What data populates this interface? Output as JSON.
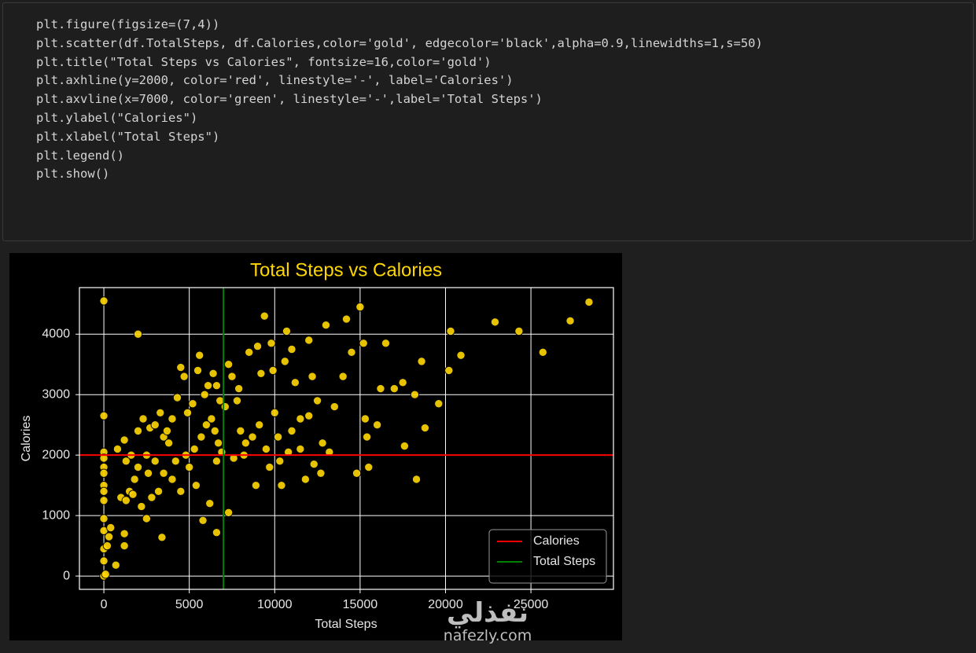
{
  "code": {
    "lines": [
      "plt.figure(figsize=(7,4))",
      "plt.scatter(df.TotalSteps, df.Calories,color='gold', edgecolor='black',alpha=0.9,linewidths=1,s=50)",
      "plt.title(\"Total Steps vs Calories\", fontsize=16,color='gold')",
      "plt.axhline(y=2000, color='red', linestyle='-', label='Calories')",
      "plt.axvline(x=7000, color='green', linestyle='-',label='Total Steps')",
      "plt.ylabel(\"Calories\")",
      "plt.xlabel(\"Total Steps\")",
      "plt.legend()",
      "plt.show()"
    ]
  },
  "chart_data": {
    "type": "scatter",
    "title": "Total Steps vs Calories",
    "title_color": "gold",
    "x_label": "Total Steps",
    "y_label": "Calories",
    "xlim": [
      -1430,
      29830
    ],
    "ylim": [
      -220,
      4770
    ],
    "xticks": [
      0,
      5000,
      10000,
      15000,
      20000,
      25000
    ],
    "yticks": [
      0,
      1000,
      2000,
      3000,
      4000
    ],
    "grid": true,
    "legend": "lower right",
    "series": [
      {
        "color": "gold",
        "edgecolor": "black",
        "alpha": 0.9,
        "x": [
          0,
          2000,
          0,
          0,
          0,
          0,
          0,
          0,
          0,
          0,
          0,
          0,
          0,
          0,
          0,
          100,
          200,
          300,
          400,
          700,
          1200,
          1200,
          1000,
          1300,
          1500,
          1800,
          2000,
          2200,
          2500,
          3400,
          1600,
          1300,
          800,
          1200,
          2000,
          2300,
          2700,
          3000,
          3300,
          3500,
          3800,
          4000,
          4300,
          4500,
          4700,
          4900,
          5200,
          5500,
          5600,
          5900,
          6100,
          6400,
          6600,
          6800,
          6300,
          6500,
          6700,
          6900,
          5000,
          5400,
          5800,
          6200,
          6600,
          6600,
          7100,
          7300,
          7300,
          7500,
          7800,
          7900,
          8000,
          8200,
          8500,
          8700,
          8900,
          9000,
          9200,
          9400,
          9800,
          9900,
          10000,
          10200,
          10300,
          10400,
          10600,
          10700,
          11000,
          11200,
          11500,
          11800,
          12000,
          12200,
          12500,
          12700,
          13000,
          13200,
          13500,
          14000,
          14200,
          14500,
          14800,
          15000,
          15200,
          15300,
          15400,
          15500,
          16000,
          16200,
          16500,
          17000,
          17500,
          17600,
          18200,
          18300,
          18600,
          18800,
          19600,
          20200,
          20300,
          20900,
          22900,
          24300,
          25700,
          27300,
          28400,
          2500,
          3000,
          3500,
          4000,
          4500,
          4800,
          5300,
          5700,
          6000,
          3200,
          2800,
          4200,
          1700,
          2600,
          3700,
          7600,
          8300,
          9500,
          10800,
          11500,
          12300,
          12800,
          9100,
          9700,
          11000,
          12000
        ],
        "y": [
          4550,
          4000,
          2650,
          2050,
          1950,
          1800,
          1700,
          1500,
          1400,
          1250,
          950,
          750,
          450,
          250,
          0,
          30,
          500,
          650,
          800,
          180,
          500,
          700,
          1300,
          1250,
          1400,
          1600,
          1800,
          1150,
          950,
          640,
          2000,
          1900,
          2100,
          2250,
          2400,
          2600,
          2450,
          2500,
          2700,
          2300,
          2200,
          2600,
          2950,
          3450,
          3300,
          2700,
          2850,
          3400,
          3650,
          3000,
          3150,
          3350,
          3150,
          2900,
          2600,
          2400,
          2200,
          2050,
          1800,
          1500,
          920,
          1200,
          720,
          1900,
          2800,
          3500,
          1050,
          3300,
          2900,
          3100,
          2400,
          2000,
          3700,
          2300,
          1500,
          3800,
          3350,
          4300,
          3850,
          3400,
          2700,
          2300,
          1900,
          1500,
          3550,
          4050,
          3750,
          3200,
          2600,
          1600,
          3900,
          3300,
          2900,
          1700,
          4150,
          2050,
          2800,
          3300,
          4250,
          3700,
          1700,
          4450,
          3850,
          2600,
          2300,
          1800,
          2500,
          3100,
          3850,
          3100,
          3200,
          2150,
          3000,
          1600,
          3550,
          2450,
          2850,
          3400,
          4050,
          3650,
          4200,
          4050,
          3700,
          4220,
          4530,
          2000,
          1900,
          1700,
          1600,
          1400,
          2000,
          2100,
          2300,
          2500,
          1400,
          1300,
          1900,
          1350,
          1700,
          2400,
          1950,
          2200,
          2100,
          2050,
          2100,
          1850,
          2200,
          2500,
          1800,
          2400,
          2650
        ]
      }
    ],
    "hlines": [
      {
        "y": 2000,
        "color": "red",
        "label": "Calories"
      }
    ],
    "vlines": [
      {
        "x": 7000,
        "color": "green",
        "label": "Total Steps"
      }
    ]
  },
  "watermark": {
    "logo": "نفذلي",
    "url": "nafezly.com"
  }
}
